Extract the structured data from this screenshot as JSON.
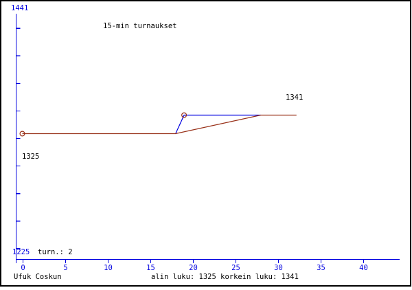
{
  "window": {
    "background": "#ffffff",
    "border_color": "#000000"
  },
  "chart_data": {
    "type": "line",
    "title": "15-min turnaukset",
    "player": "Ufuk Coskun",
    "tournaments_label": "turn.: 2",
    "stats_label": "alin luku: 1325 korkein luku: 1341",
    "alin_luku": 1325,
    "korkein_luku": 1341,
    "grid": false,
    "legend": false,
    "axis_color": "#0000e0",
    "text_color": "#000000",
    "y_axis": {
      "top_label": "1441",
      "bottom_label": "1225",
      "min": 1225,
      "max": 1441,
      "tick_count": 9
    },
    "x_axis": {
      "ticks": [
        "0",
        "5",
        "10",
        "15",
        "20",
        "25",
        "30",
        "35",
        "40"
      ],
      "min": 0,
      "max": 44
    },
    "series": [
      {
        "name": "rating-progression",
        "color": "#0000e0",
        "points": [
          [
            18,
            1325
          ],
          [
            19,
            1341
          ],
          [
            28,
            1341
          ]
        ]
      },
      {
        "name": "rating-trend",
        "color": "#983018",
        "points": [
          [
            0,
            1325
          ],
          [
            18,
            1325
          ],
          [
            28,
            1341
          ],
          [
            32.2,
            1341
          ]
        ]
      }
    ],
    "markers": {
      "name": "tournament-points",
      "color": "#983018",
      "radius": 3.4,
      "points": [
        [
          0,
          1325
        ],
        [
          19,
          1341
        ]
      ]
    },
    "point_labels": {
      "low": "1325",
      "high": "1341"
    }
  }
}
